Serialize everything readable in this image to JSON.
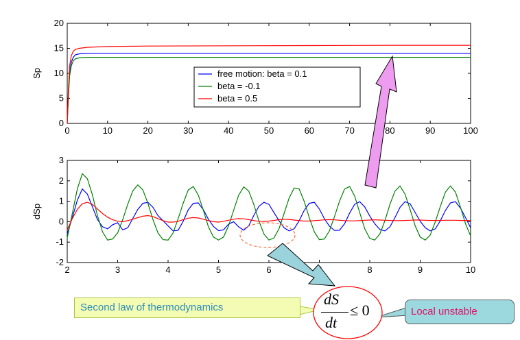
{
  "chart_data": [
    {
      "type": "line",
      "title": "",
      "xlabel": "",
      "ylabel": "Sp",
      "xlim": [
        0,
        100
      ],
      "ylim": [
        0,
        20
      ],
      "xticks": [
        0,
        10,
        20,
        30,
        40,
        50,
        60,
        70,
        80,
        90,
        100
      ],
      "yticks": [
        0,
        5,
        10,
        15,
        20
      ],
      "legend_position": "center",
      "series": [
        {
          "name": "free motion: beta = 0.1",
          "color": "#0000ff",
          "x": [
            0,
            0.3,
            0.6,
            1,
            1.5,
            2,
            3,
            5,
            10,
            20,
            40,
            60,
            80,
            100
          ],
          "y": [
            0,
            6,
            10,
            12.2,
            13.2,
            13.7,
            13.9,
            14.0,
            14.0,
            14.0,
            14.0,
            14.0,
            14.0,
            14.0
          ]
        },
        {
          "name": "beta = -0.1",
          "color": "#008000",
          "x": [
            0,
            0.3,
            0.6,
            1,
            1.5,
            2,
            3,
            5,
            10,
            20,
            40,
            60,
            80,
            100
          ],
          "y": [
            0,
            5.5,
            9.5,
            11.5,
            12.5,
            12.9,
            13.1,
            13.2,
            13.2,
            13.2,
            13.2,
            13.2,
            13.2,
            13.2
          ]
        },
        {
          "name": "beta = 0.5",
          "color": "#ff0000",
          "x": [
            0,
            0.3,
            0.6,
            1,
            1.5,
            2,
            3,
            5,
            10,
            20,
            40,
            60,
            80,
            100
          ],
          "y": [
            0,
            7,
            11.5,
            13.5,
            14.4,
            14.8,
            15.0,
            15.2,
            15.35,
            15.45,
            15.5,
            15.55,
            15.6,
            15.6
          ]
        }
      ]
    },
    {
      "type": "line",
      "title": "",
      "xlabel": "",
      "ylabel": "dSp",
      "xlim": [
        2,
        10
      ],
      "ylim": [
        -2,
        3
      ],
      "xticks": [
        2,
        3,
        4,
        5,
        6,
        7,
        8,
        9,
        10
      ],
      "yticks": [
        -2,
        -1,
        0,
        1,
        2,
        3
      ],
      "series": [
        {
          "color": "#0000ff",
          "x": [
            2,
            2.1,
            2.2,
            2.3,
            2.4,
            2.5,
            2.6,
            2.7,
            2.8,
            2.9,
            3.0,
            3.1,
            3.2,
            3.3,
            3.4,
            3.5,
            3.6,
            3.7,
            3.8,
            3.9,
            4.0,
            4.1,
            4.2,
            4.3,
            4.4,
            4.5,
            4.6,
            4.7,
            4.8,
            4.9,
            5.0,
            5.1,
            5.2,
            5.3,
            5.4,
            5.5,
            5.6,
            5.7,
            5.8,
            5.9,
            6.0,
            6.1,
            6.2,
            6.3,
            6.4,
            6.5,
            6.6,
            6.7,
            6.8,
            6.9,
            7.0,
            7.1,
            7.2,
            7.3,
            7.4,
            7.5,
            7.6,
            7.7,
            7.8,
            7.9,
            8.0,
            8.1,
            8.2,
            8.3,
            8.4,
            8.5,
            8.6,
            8.7,
            8.8,
            8.9,
            9.0,
            9.1,
            9.2,
            9.3,
            9.4,
            9.5,
            9.6,
            9.7,
            9.8,
            9.9,
            10.0
          ],
          "y": [
            -0.6,
            0.2,
            1.05,
            1.6,
            1.35,
            0.72,
            0.1,
            -0.25,
            -0.35,
            -0.15,
            -0.05,
            -0.4,
            -0.3,
            0.15,
            0.6,
            0.9,
            0.95,
            0.7,
            0.3,
            0.05,
            -0.2,
            -0.45,
            -0.42,
            0.02,
            0.58,
            0.9,
            0.92,
            0.58,
            0.12,
            -0.23,
            -0.44,
            -0.4,
            -0.12,
            0.0,
            -0.25,
            -0.42,
            -0.2,
            0.3,
            0.75,
            0.95,
            0.85,
            0.45,
            0.05,
            -0.3,
            -0.45,
            -0.35,
            0.05,
            0.55,
            0.9,
            0.95,
            0.62,
            0.15,
            -0.22,
            -0.43,
            -0.42,
            -0.1,
            0.42,
            0.85,
            0.98,
            0.72,
            0.28,
            -0.1,
            -0.38,
            -0.45,
            -0.25,
            0.2,
            0.7,
            0.98,
            0.88,
            0.45,
            0.02,
            -0.3,
            -0.45,
            -0.35,
            0.05,
            0.55,
            0.92,
            0.98,
            0.66,
            0.2,
            -0.3
          ]
        },
        {
          "color": "#008000",
          "x": [
            2,
            2.1,
            2.2,
            2.3,
            2.4,
            2.5,
            2.6,
            2.7,
            2.8,
            2.9,
            3.0,
            3.1,
            3.2,
            3.3,
            3.4,
            3.5,
            3.6,
            3.7,
            3.8,
            3.9,
            4.0,
            4.1,
            4.2,
            4.3,
            4.4,
            4.5,
            4.6,
            4.7,
            4.8,
            4.9,
            5.0,
            5.1,
            5.2,
            5.3,
            5.4,
            5.5,
            5.6,
            5.7,
            5.8,
            5.9,
            6.0,
            6.1,
            6.2,
            6.3,
            6.4,
            6.5,
            6.6,
            6.7,
            6.8,
            6.9,
            7.0,
            7.1,
            7.2,
            7.3,
            7.4,
            7.5,
            7.6,
            7.7,
            7.8,
            7.9,
            8.0,
            8.1,
            8.2,
            8.3,
            8.4,
            8.5,
            8.6,
            8.7,
            8.8,
            8.9,
            9.0,
            9.1,
            9.2,
            9.3,
            9.4,
            9.5,
            9.6,
            9.7,
            9.8,
            9.9,
            10.0
          ],
          "y": [
            -0.8,
            0.4,
            1.6,
            2.35,
            2.1,
            1.3,
            0.3,
            -0.5,
            -0.9,
            -0.85,
            -0.55,
            0.1,
            0.85,
            1.5,
            1.8,
            1.55,
            0.9,
            0.1,
            -0.55,
            -0.88,
            -0.9,
            -0.55,
            0.15,
            0.9,
            1.55,
            1.72,
            1.3,
            0.55,
            -0.25,
            -0.75,
            -0.9,
            -0.75,
            -0.2,
            0.55,
            1.3,
            1.7,
            1.5,
            0.85,
            0.05,
            -0.6,
            -0.9,
            -0.8,
            -0.35,
            0.4,
            1.15,
            1.65,
            1.6,
            1.0,
            0.2,
            -0.5,
            -0.88,
            -0.85,
            -0.45,
            0.25,
            1.0,
            1.6,
            1.72,
            1.25,
            0.45,
            -0.35,
            -0.82,
            -0.9,
            -0.6,
            0.05,
            0.85,
            1.5,
            1.75,
            1.35,
            0.6,
            -0.2,
            -0.75,
            -0.9,
            -0.65,
            0.0,
            0.75,
            1.45,
            1.75,
            1.45,
            0.7,
            -0.1,
            -0.7
          ]
        },
        {
          "color": "#ff0000",
          "x": [
            2,
            2.1,
            2.2,
            2.3,
            2.4,
            2.5,
            2.6,
            2.7,
            2.8,
            2.9,
            3.0,
            3.1,
            3.2,
            3.3,
            3.4,
            3.5,
            3.6,
            3.7,
            3.8,
            3.9,
            4.0,
            4.1,
            4.2,
            4.3,
            4.4,
            4.5,
            4.6,
            4.7,
            4.8,
            4.9,
            5.0,
            5.1,
            5.2,
            5.3,
            5.4,
            5.5,
            5.6,
            5.7,
            5.8,
            5.9,
            6.0,
            6.1,
            6.2,
            6.3,
            6.4,
            6.5,
            6.6,
            6.7,
            6.8,
            6.9,
            7.0,
            7.1,
            7.2,
            7.3,
            7.4,
            7.5,
            7.6,
            7.7,
            7.8,
            7.9,
            8.0,
            8.1,
            8.2,
            8.3,
            8.4,
            8.5,
            8.6,
            8.7,
            8.8,
            8.9,
            9.0,
            9.1,
            9.2,
            9.3,
            9.4,
            9.5,
            9.6,
            9.7,
            9.8,
            9.9,
            10.0
          ],
          "y": [
            -0.4,
            0.15,
            0.6,
            0.88,
            0.95,
            0.85,
            0.62,
            0.4,
            0.22,
            0.1,
            0.02,
            0.0,
            0.05,
            0.12,
            0.2,
            0.27,
            0.3,
            0.25,
            0.15,
            0.05,
            -0.02,
            -0.02,
            0.02,
            0.1,
            0.17,
            0.2,
            0.18,
            0.12,
            0.05,
            0.0,
            -0.02,
            0.02,
            0.07,
            0.12,
            0.15,
            0.14,
            0.1,
            0.05,
            0.02,
            0.01,
            0.03,
            0.06,
            0.1,
            0.12,
            0.11,
            0.08,
            0.05,
            0.03,
            0.03,
            0.05,
            0.07,
            0.09,
            0.1,
            0.09,
            0.07,
            0.05,
            0.04,
            0.04,
            0.05,
            0.07,
            0.08,
            0.09,
            0.08,
            0.07,
            0.06,
            0.05,
            0.05,
            0.06,
            0.07,
            0.08,
            0.08,
            0.07,
            0.06,
            0.06,
            0.06,
            0.07,
            0.07,
            0.07,
            0.06,
            0.06,
            0.06
          ]
        }
      ]
    }
  ],
  "annotations": {
    "second_law_label": "Second law of thermodynamics",
    "formula": {
      "numerator": "dS",
      "denominator": "dt",
      "relation": "≤ 0"
    },
    "local_unstable_label": "Local unstable",
    "colors": {
      "note_fill": "#f4fcb4",
      "note_text": "#2a8db6",
      "callout_fill": "#9cd9df",
      "callout_text": "#e0106a",
      "arrow_violet": "#ee9cf0",
      "arrow_teal": "#9ad3dc",
      "ellipse": "#ff6a3a"
    }
  }
}
